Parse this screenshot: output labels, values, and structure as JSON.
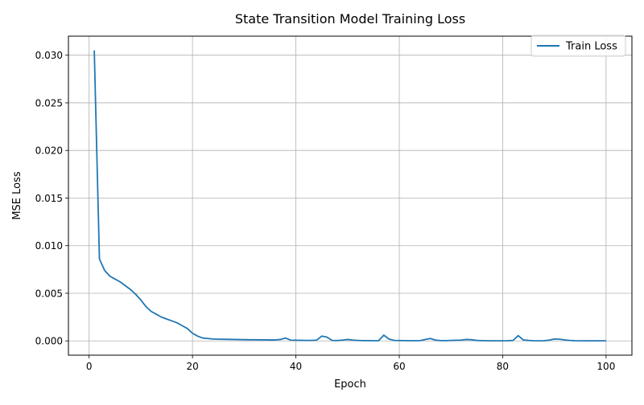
{
  "chart_data": {
    "type": "line",
    "title": "State Transition Model Training Loss",
    "xlabel": "Epoch",
    "ylabel": "MSE Loss",
    "xlim": [
      -4,
      105
    ],
    "ylim": [
      -0.0015,
      0.032
    ],
    "xticks": [
      0,
      20,
      40,
      60,
      80,
      100
    ],
    "yticks": [
      0.0,
      0.005,
      0.01,
      0.015,
      0.02,
      0.025,
      0.03
    ],
    "ytick_labels": [
      "0.000",
      "0.005",
      "0.010",
      "0.015",
      "0.020",
      "0.025",
      "0.030"
    ],
    "grid": true,
    "legend_position": "top-right",
    "series": [
      {
        "name": "Train Loss",
        "color": "#1f77b4",
        "x": [
          1,
          2,
          3,
          4,
          5,
          6,
          7,
          8,
          9,
          10,
          11,
          12,
          13,
          14,
          15,
          16,
          17,
          18,
          19,
          20,
          21,
          22,
          23,
          24,
          25,
          26,
          27,
          28,
          29,
          30,
          31,
          32,
          33,
          34,
          35,
          36,
          37,
          38,
          39,
          40,
          41,
          42,
          43,
          44,
          45,
          46,
          47,
          48,
          49,
          50,
          51,
          52,
          53,
          54,
          55,
          56,
          57,
          58,
          59,
          60,
          61,
          62,
          63,
          64,
          65,
          66,
          67,
          68,
          69,
          70,
          71,
          72,
          73,
          74,
          75,
          76,
          77,
          78,
          79,
          80,
          81,
          82,
          83,
          84,
          85,
          86,
          87,
          88,
          89,
          90,
          91,
          92,
          93,
          94,
          95,
          96,
          97,
          98,
          99,
          100
        ],
        "y": [
          0.0305,
          0.0086,
          0.0074,
          0.0068,
          0.0065,
          0.0062,
          0.0058,
          0.0054,
          0.0049,
          0.0043,
          0.0036,
          0.0031,
          0.0028,
          0.0025,
          0.0023,
          0.0021,
          0.0019,
          0.0016,
          0.0013,
          0.0008,
          0.0005,
          0.0003,
          0.00025,
          0.0002,
          0.00018,
          0.00017,
          0.00016,
          0.00015,
          0.00014,
          0.00013,
          0.00012,
          0.00012,
          0.00011,
          0.00011,
          0.0001,
          0.0001,
          0.00015,
          0.0003,
          8e-05,
          7e-05,
          6e-05,
          5e-05,
          5e-05,
          8e-05,
          0.0005,
          0.0004,
          5e-05,
          4e-05,
          8e-05,
          0.00015,
          8e-05,
          5e-05,
          3e-05,
          3e-05,
          2e-05,
          2e-05,
          0.0006,
          0.0002,
          5e-05,
          4e-05,
          3e-05,
          2e-05,
          2e-05,
          3e-05,
          0.00015,
          0.00025,
          8e-05,
          3e-05,
          3e-05,
          5e-05,
          7e-05,
          8e-05,
          0.00015,
          0.00012,
          5e-05,
          3e-05,
          2e-05,
          1e-05,
          1e-05,
          1e-05,
          2e-05,
          5e-05,
          0.00055,
          0.0001,
          5e-05,
          2e-05,
          1e-05,
          2e-05,
          8e-05,
          0.0002,
          0.00018,
          0.0001,
          5e-05,
          2e-05,
          1e-05,
          1e-05,
          1e-05,
          1e-05,
          1e-05,
          1e-05
        ]
      }
    ]
  }
}
